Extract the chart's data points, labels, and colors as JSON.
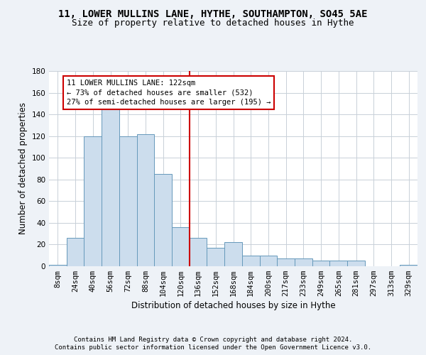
{
  "title": "11, LOWER MULLINS LANE, HYTHE, SOUTHAMPTON, SO45 5AE",
  "subtitle": "Size of property relative to detached houses in Hythe",
  "xlabel": "Distribution of detached houses by size in Hythe",
  "ylabel": "Number of detached properties",
  "categories": [
    "8sqm",
    "24sqm",
    "40sqm",
    "56sqm",
    "72sqm",
    "88sqm",
    "104sqm",
    "120sqm",
    "136sqm",
    "152sqm",
    "168sqm",
    "184sqm",
    "200sqm",
    "217sqm",
    "233sqm",
    "249sqm",
    "265sqm",
    "281sqm",
    "297sqm",
    "313sqm",
    "329sqm"
  ],
  "values": [
    1,
    26,
    120,
    145,
    120,
    122,
    85,
    36,
    26,
    17,
    22,
    10,
    10,
    7,
    7,
    5,
    5,
    5,
    0,
    0,
    1
  ],
  "bar_color": "#ccdded",
  "bar_edge_color": "#6699bb",
  "annotation_text": "11 LOWER MULLINS LANE: 122sqm\n← 73% of detached houses are smaller (532)\n27% of semi-detached houses are larger (195) →",
  "annotation_box_color": "#ffffff",
  "annotation_box_edge_color": "#cc0000",
  "property_line_color": "#cc0000",
  "ylim": [
    0,
    180
  ],
  "yticks": [
    0,
    20,
    40,
    60,
    80,
    100,
    120,
    140,
    160,
    180
  ],
  "footer_line1": "Contains HM Land Registry data © Crown copyright and database right 2024.",
  "footer_line2": "Contains public sector information licensed under the Open Government Licence v3.0.",
  "background_color": "#eef2f7",
  "plot_bg_color": "#ffffff",
  "grid_color": "#c8d0d8",
  "title_fontsize": 10,
  "subtitle_fontsize": 9,
  "xlabel_fontsize": 8.5,
  "ylabel_fontsize": 8.5,
  "tick_fontsize": 7.5,
  "footer_fontsize": 6.5
}
